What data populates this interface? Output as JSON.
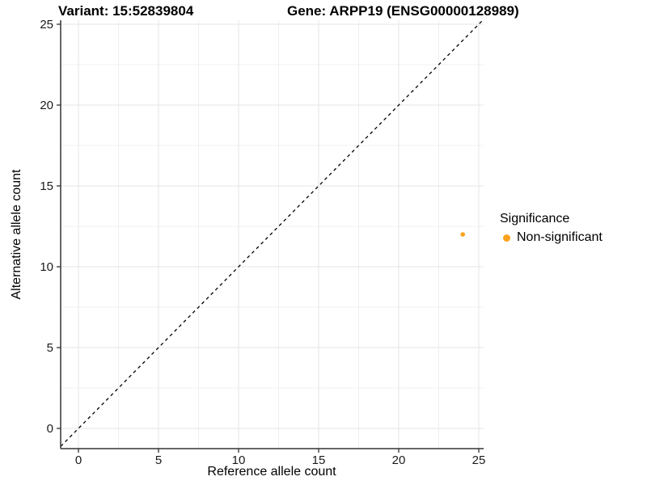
{
  "chart_data": {
    "type": "scatter",
    "title_left": "Variant: 15:52839804",
    "title_right": "Gene: ARPP19 (ENSG00000128989)",
    "xlabel": "Reference allele count",
    "ylabel": "Alternative allele count",
    "xlim": [
      -1.25,
      26.25
    ],
    "ylim": [
      -1.25,
      26.25
    ],
    "x_ticks": [
      0,
      5,
      10,
      15,
      20,
      25
    ],
    "y_ticks": [
      0,
      5,
      10,
      15,
      20,
      25
    ],
    "minor_gridlines": [
      2.5,
      7.5,
      12.5,
      17.5,
      22.5
    ],
    "grid": true,
    "reference_line": {
      "type": "identity",
      "style": "dashed",
      "color": "#000000"
    },
    "series": [
      {
        "name": "Non-significant",
        "color": "#FAA21E",
        "points": [
          {
            "x": 24,
            "y": 12
          }
        ]
      }
    ],
    "legend": {
      "title": "Significance",
      "position": "right",
      "items": [
        {
          "label": "Non-significant",
          "color": "#FAA21E"
        }
      ]
    }
  },
  "style_colors": {
    "major_grid": "#E6E6E6",
    "minor_grid": "#F0F0F0",
    "axis_line": "#333333",
    "tick_mark": "#333333",
    "tick_label": "#1A1A1A"
  }
}
